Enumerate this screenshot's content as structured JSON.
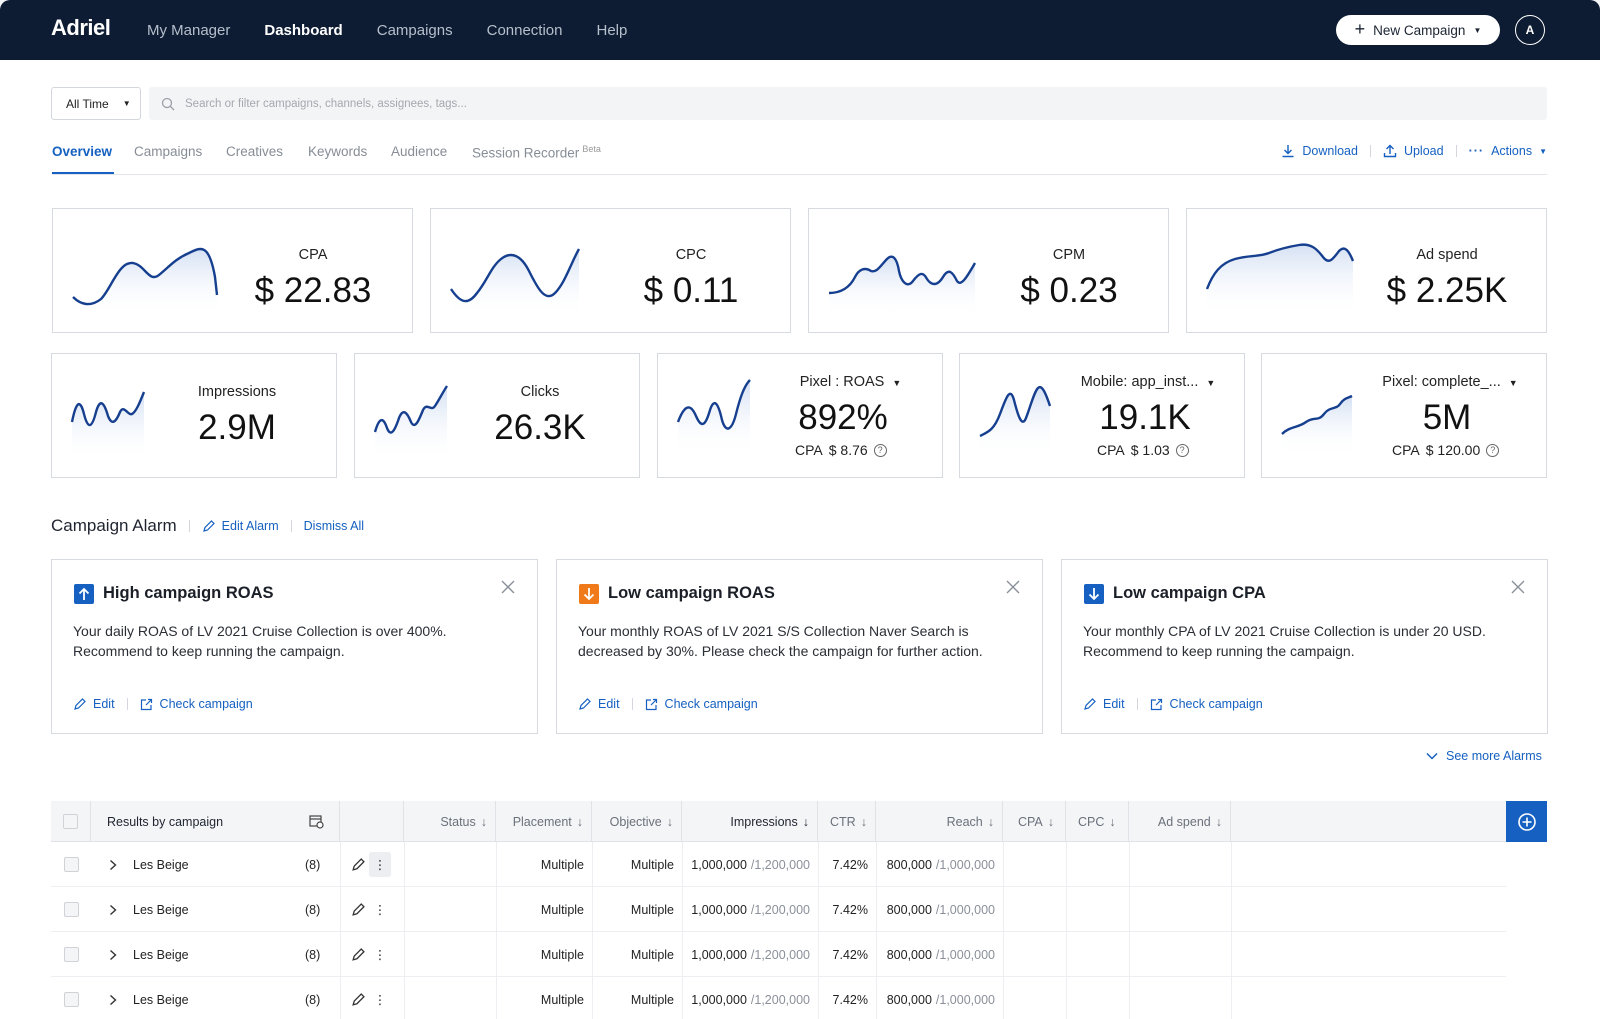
{
  "nav": {
    "logo": "Adriel",
    "items": [
      {
        "label": "My Manager",
        "active": false
      },
      {
        "label": "Dashboard",
        "active": true
      },
      {
        "label": "Campaigns",
        "active": false
      },
      {
        "label": "Connection",
        "active": false
      },
      {
        "label": "Help",
        "active": false
      }
    ],
    "new_campaign_label": "New Campaign",
    "avatar_initial": "A"
  },
  "filter": {
    "time_label": "All Time",
    "search_placeholder": "Search or filter campaigns, channels, assignees, tags..."
  },
  "tabs": {
    "items": [
      "Overview",
      "Campaigns",
      "Creatives",
      "Keywords",
      "Audience",
      "Session Recorder"
    ],
    "beta_label": "Beta",
    "download_label": "Download",
    "upload_label": "Upload",
    "actions_label": "Actions"
  },
  "kpis_top": [
    {
      "label": "CPA",
      "value": "$ 22.83"
    },
    {
      "label": "CPC",
      "value": "$ 0.11"
    },
    {
      "label": "CPM",
      "value": "$ 0.23"
    },
    {
      "label": "Ad spend",
      "value": "$ 2.25K"
    }
  ],
  "kpis_bottom": [
    {
      "label": "Impressions",
      "value": "2.9M"
    },
    {
      "label": "Clicks",
      "value": "26.3K"
    },
    {
      "label": "Pixel : ROAS",
      "value": "892%",
      "sub_label": "CPA",
      "sub_value": "$ 8.76"
    },
    {
      "label": "Mobile: app_inst...",
      "value": "19.1K",
      "sub_label": "CPA",
      "sub_value": "$ 1.03"
    },
    {
      "label": "Pixel: complete_...",
      "value": "5M",
      "sub_label": "CPA",
      "sub_value": "$ 120.00"
    }
  ],
  "alarm": {
    "title": "Campaign Alarm",
    "edit_label": "Edit Alarm",
    "dismiss_label": "Dismiss All",
    "see_more_label": "See more Alarms",
    "cards": [
      {
        "title": "High campaign ROAS",
        "direction": "up",
        "color": "#1560c0",
        "text": "Your daily ROAS of LV 2021 Cruise Collection is over 400%. Recommend to keep running the campaign.",
        "edit_label": "Edit",
        "check_label": "Check campaign"
      },
      {
        "title": "Low campaign ROAS",
        "direction": "down",
        "color": "#f07a1a",
        "text": "Your monthly ROAS of LV 2021 S/S Collection Naver Search is decreased by 30%. Please check the campaign for further action.",
        "edit_label": "Edit",
        "check_label": "Check campaign"
      },
      {
        "title": "Low campaign CPA",
        "direction": "down",
        "color": "#1560c0",
        "text": "Your monthly CPA of LV 2021 Cruise Collection is under 20 USD. Recommend to keep running the campaign.",
        "edit_label": "Edit",
        "check_label": "Check campaign"
      }
    ]
  },
  "table": {
    "first_header": "Results by campaign",
    "headers": [
      "Status",
      "Placement",
      "Objective",
      "Impressions",
      "CTR",
      "Reach",
      "CPA",
      "CPC",
      "Ad spend"
    ],
    "rows": [
      {
        "name": "Les Beige",
        "count": "(8)",
        "placement": "Multiple",
        "objective": "Multiple",
        "impressions": "1,000,000",
        "impressions_total": "/1,200,000",
        "ctr": "7.42%",
        "reach": "800,000",
        "reach_total": "/1,000,000"
      },
      {
        "name": "Les Beige",
        "count": "(8)",
        "placement": "Multiple",
        "objective": "Multiple",
        "impressions": "1,000,000",
        "impressions_total": "/1,200,000",
        "ctr": "7.42%",
        "reach": "800,000",
        "reach_total": "/1,000,000"
      },
      {
        "name": "Les Beige",
        "count": "(8)",
        "placement": "Multiple",
        "objective": "Multiple",
        "impressions": "1,000,000",
        "impressions_total": "/1,200,000",
        "ctr": "7.42%",
        "reach": "800,000",
        "reach_total": "/1,000,000"
      },
      {
        "name": "Les Beige",
        "count": "(8)",
        "placement": "Multiple",
        "objective": "Multiple",
        "impressions": "1,000,000",
        "impressions_total": "/1,200,000",
        "ctr": "7.42%",
        "reach": "800,000",
        "reach_total": "/1,000,000"
      }
    ]
  },
  "colors": {
    "nav_bg": "#0d1c33",
    "accent": "#1560c0",
    "alert_orange": "#f07a1a",
    "spark_line": "#163f8f"
  }
}
